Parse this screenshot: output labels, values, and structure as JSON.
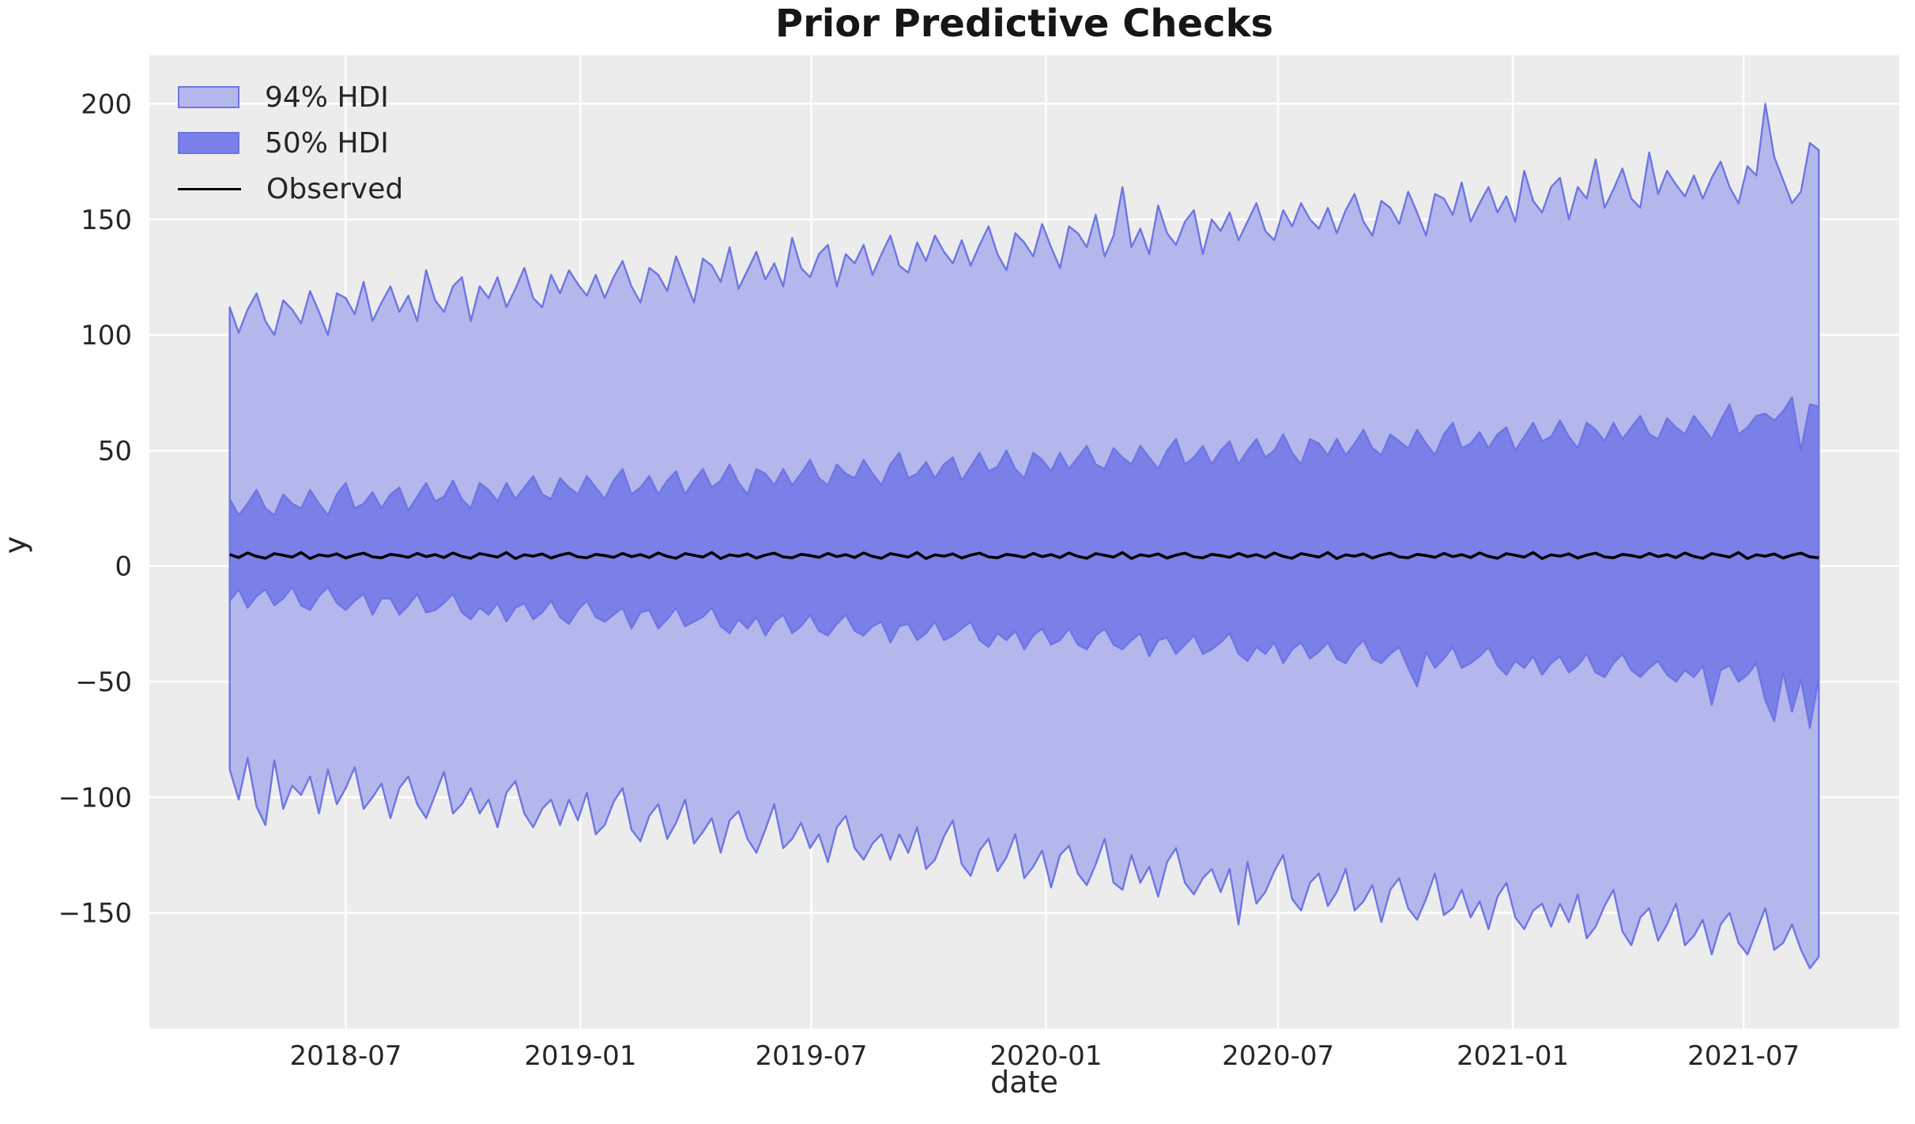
{
  "title": "Prior Predictive Checks",
  "chart_data": {
    "type": "area",
    "title": "Prior Predictive Checks",
    "xlabel": "date",
    "ylabel": "y",
    "grid": true,
    "legend_position": "upper left",
    "legend": [
      {
        "label": "94% HDI",
        "swatch": "light-band"
      },
      {
        "label": "50% HDI",
        "swatch": "dark-band"
      },
      {
        "label": "Observed",
        "swatch": "black-line"
      }
    ],
    "colors": {
      "hdi94_fill": "#b3b7ec",
      "hdi50_fill": "#7a80e8",
      "band_edge": "#6e75e3",
      "observed": "#000000",
      "plot_bg": "#ececec",
      "grid": "#ffffff",
      "text": "#262626",
      "figure_bg": "#ffffff"
    },
    "x_start": "2018-04-01",
    "x_step_days": 7,
    "n_points": 179,
    "xlim": [
      "2018-01-28",
      "2021-10-31"
    ],
    "ylim": [
      -200,
      221
    ],
    "x_ticks": [
      "2018-07-01",
      "2019-01-01",
      "2019-07-01",
      "2020-01-01",
      "2020-07-01",
      "2021-01-01",
      "2021-07-01"
    ],
    "x_tick_labels": [
      "2018-07",
      "2019-01",
      "2019-07",
      "2020-01",
      "2020-07",
      "2021-01",
      "2021-07"
    ],
    "y_ticks": [
      -150,
      -100,
      -50,
      0,
      50,
      100,
      150,
      200
    ],
    "y_tick_labels": [
      "−150",
      "−100",
      "−50",
      "0",
      "50",
      "100",
      "150",
      "200"
    ],
    "series": [
      {
        "name": "94% HDI upper",
        "values": [
          112,
          101,
          111,
          118,
          106,
          100,
          115,
          111,
          105,
          119,
          110,
          100,
          118,
          116,
          109,
          123,
          106,
          114,
          121,
          110,
          117,
          106,
          128,
          115,
          110,
          121,
          125,
          106,
          121,
          116,
          125,
          112,
          120,
          129,
          116,
          112,
          126,
          118,
          128,
          122,
          117,
          126,
          116,
          125,
          132,
          121,
          114,
          129,
          126,
          119,
          134,
          124,
          114,
          133,
          130,
          123,
          138,
          120,
          128,
          136,
          124,
          131,
          121,
          142,
          129,
          125,
          135,
          139,
          121,
          135,
          131,
          139,
          126,
          135,
          143,
          130,
          127,
          140,
          132,
          143,
          136,
          131,
          141,
          130,
          139,
          147,
          135,
          128,
          144,
          140,
          134,
          148,
          138,
          129,
          147,
          144,
          138,
          152,
          134,
          143,
          164,
          138,
          146,
          135,
          156,
          144,
          139,
          149,
          154,
          135,
          150,
          145,
          153,
          141,
          149,
          157,
          145,
          141,
          154,
          147,
          157,
          150,
          146,
          155,
          144,
          154,
          161,
          149,
          143,
          158,
          155,
          148,
          162,
          153,
          143,
          161,
          159,
          152,
          166,
          149,
          157,
          164,
          153,
          160,
          149,
          171,
          158,
          153,
          164,
          168,
          150,
          164,
          159,
          176,
          155,
          163,
          172,
          159,
          155,
          179,
          161,
          171,
          165,
          160,
          169,
          159,
          168,
          175,
          164,
          157,
          173,
          169,
          200,
          177,
          167,
          157,
          162,
          183,
          180
        ]
      },
      {
        "name": "94% HDI lower",
        "values": [
          -88,
          -101,
          -83,
          -104,
          -112,
          -84,
          -105,
          -95,
          -99,
          -91,
          -107,
          -88,
          -103,
          -96,
          -87,
          -105,
          -100,
          -94,
          -109,
          -96,
          -91,
          -103,
          -109,
          -99,
          -89,
          -107,
          -103,
          -96,
          -107,
          -101,
          -113,
          -98,
          -93,
          -107,
          -113,
          -105,
          -101,
          -112,
          -101,
          -110,
          -98,
          -116,
          -112,
          -102,
          -96,
          -114,
          -119,
          -108,
          -103,
          -118,
          -111,
          -101,
          -120,
          -115,
          -109,
          -124,
          -110,
          -106,
          -118,
          -124,
          -114,
          -103,
          -122,
          -118,
          -111,
          -122,
          -116,
          -128,
          -113,
          -108,
          -122,
          -127,
          -120,
          -116,
          -127,
          -116,
          -124,
          -113,
          -131,
          -127,
          -117,
          -110,
          -129,
          -134,
          -123,
          -118,
          -132,
          -126,
          -116,
          -135,
          -130,
          -123,
          -139,
          -125,
          -121,
          -133,
          -138,
          -129,
          -118,
          -137,
          -140,
          -125,
          -137,
          -130,
          -143,
          -128,
          -122,
          -137,
          -142,
          -135,
          -131,
          -141,
          -131,
          -155,
          -128,
          -146,
          -141,
          -132,
          -125,
          -144,
          -149,
          -137,
          -133,
          -147,
          -141,
          -131,
          -149,
          -145,
          -138,
          -154,
          -140,
          -135,
          -148,
          -153,
          -144,
          -133,
          -151,
          -148,
          -140,
          -152,
          -145,
          -157,
          -143,
          -137,
          -152,
          -157,
          -149,
          -146,
          -156,
          -146,
          -154,
          -142,
          -161,
          -156,
          -147,
          -140,
          -158,
          -164,
          -152,
          -148,
          -162,
          -155,
          -146,
          -164,
          -160,
          -153,
          -168,
          -155,
          -150,
          -163,
          -168,
          -158,
          -148,
          -166,
          -163,
          -155,
          -166,
          -174,
          -169
        ]
      },
      {
        "name": "50% HDI upper",
        "values": [
          29,
          22,
          27,
          33,
          25,
          22,
          31,
          27,
          25,
          33,
          27,
          22,
          31,
          36,
          25,
          27,
          32,
          25,
          31,
          34,
          24,
          30,
          36,
          28,
          30,
          37,
          29,
          25,
          36,
          33,
          28,
          36,
          29,
          34,
          39,
          31,
          29,
          38,
          34,
          31,
          39,
          34,
          29,
          37,
          42,
          31,
          34,
          39,
          31,
          37,
          41,
          31,
          37,
          42,
          34,
          37,
          44,
          36,
          31,
          42,
          40,
          35,
          42,
          35,
          40,
          46,
          38,
          35,
          44,
          40,
          38,
          46,
          40,
          35,
          44,
          49,
          38,
          40,
          45,
          38,
          44,
          47,
          37,
          43,
          49,
          41,
          43,
          50,
          42,
          38,
          49,
          46,
          41,
          49,
          42,
          47,
          52,
          44,
          42,
          51,
          47,
          44,
          52,
          47,
          42,
          50,
          55,
          44,
          47,
          52,
          44,
          50,
          54,
          44,
          50,
          55,
          47,
          50,
          57,
          49,
          44,
          55,
          53,
          48,
          55,
          48,
          53,
          59,
          51,
          48,
          57,
          54,
          51,
          59,
          53,
          48,
          57,
          62,
          51,
          53,
          58,
          51,
          57,
          60,
          50,
          56,
          62,
          54,
          56,
          63,
          56,
          51,
          62,
          59,
          54,
          62,
          55,
          60,
          65,
          57,
          55,
          64,
          60,
          57,
          65,
          60,
          55,
          63,
          70,
          57,
          60,
          65,
          66,
          63,
          67,
          73,
          50,
          70,
          69
        ]
      },
      {
        "name": "50% HDI lower",
        "values": [
          -15,
          -10,
          -18,
          -13,
          -10,
          -17,
          -14,
          -9,
          -17,
          -19,
          -13,
          -9,
          -16,
          -19,
          -15,
          -12,
          -21,
          -14,
          -14,
          -21,
          -17,
          -12,
          -20,
          -19,
          -16,
          -12,
          -20,
          -23,
          -18,
          -21,
          -16,
          -24,
          -18,
          -16,
          -23,
          -20,
          -15,
          -22,
          -25,
          -19,
          -15,
          -22,
          -24,
          -21,
          -18,
          -27,
          -20,
          -19,
          -27,
          -23,
          -18,
          -26,
          -24,
          -22,
          -18,
          -26,
          -29,
          -23,
          -27,
          -22,
          -30,
          -24,
          -21,
          -29,
          -26,
          -21,
          -28,
          -30,
          -25,
          -21,
          -28,
          -30,
          -26,
          -24,
          -33,
          -26,
          -25,
          -32,
          -29,
          -24,
          -32,
          -30,
          -27,
          -24,
          -32,
          -35,
          -29,
          -32,
          -28,
          -36,
          -30,
          -27,
          -34,
          -32,
          -27,
          -34,
          -36,
          -30,
          -27,
          -34,
          -36,
          -32,
          -29,
          -39,
          -32,
          -31,
          -38,
          -34,
          -30,
          -38,
          -36,
          -33,
          -29,
          -38,
          -41,
          -35,
          -38,
          -33,
          -42,
          -36,
          -33,
          -40,
          -37,
          -33,
          -40,
          -42,
          -36,
          -32,
          -40,
          -42,
          -38,
          -35,
          -44,
          -52,
          -37,
          -44,
          -40,
          -35,
          -44,
          -42,
          -39,
          -35,
          -43,
          -47,
          -41,
          -44,
          -39,
          -47,
          -42,
          -39,
          -46,
          -43,
          -38,
          -46,
          -48,
          -42,
          -38,
          -45,
          -48,
          -44,
          -41,
          -47,
          -50,
          -45,
          -48,
          -43,
          -60,
          -45,
          -43,
          -50,
          -47,
          -42,
          -58,
          -67,
          -46,
          -63,
          -49,
          -70,
          -48
        ]
      },
      {
        "name": "Observed",
        "values": [
          5,
          3.7,
          5.7,
          4.2,
          3.4,
          5.4,
          4.7,
          3.9,
          5.9,
          3.3,
          4.9,
          4.3,
          5.3,
          3.5,
          4.8,
          5.6,
          4,
          3.6,
          5.1,
          4.6,
          3.8,
          5.5,
          4.1,
          5,
          3.7,
          5.7,
          4.2,
          3.4,
          5.4,
          4.7,
          3.9,
          5.9,
          3.3,
          4.9,
          4.3,
          5.3,
          3.5,
          4.8,
          5.6,
          4,
          3.6,
          5.1,
          4.6,
          3.8,
          5.5,
          4.1,
          5,
          3.7,
          5.7,
          4.2,
          3.4,
          5.4,
          4.7,
          3.9,
          5.9,
          3.3,
          4.9,
          4.3,
          5.3,
          3.5,
          4.8,
          5.6,
          4,
          3.6,
          5.1,
          4.6,
          3.8,
          5.5,
          4.1,
          5,
          3.7,
          5.7,
          4.2,
          3.4,
          5.4,
          4.7,
          3.9,
          5.9,
          3.3,
          4.9,
          4.3,
          5.3,
          3.5,
          4.8,
          5.6,
          4,
          3.6,
          5.1,
          4.6,
          3.8,
          5.5,
          4.1,
          5,
          3.7,
          5.7,
          4.2,
          3.4,
          5.4,
          4.7,
          3.9,
          5.9,
          3.3,
          4.9,
          4.3,
          5.3,
          3.5,
          4.8,
          5.6,
          4,
          3.6,
          5.1,
          4.6,
          3.8,
          5.5,
          4.1,
          5,
          3.7,
          5.7,
          4.2,
          3.4,
          5.4,
          4.7,
          3.9,
          5.9,
          3.3,
          4.9,
          4.3,
          5.3,
          3.5,
          4.8,
          5.6,
          4,
          3.6,
          5.1,
          4.6,
          3.8,
          5.5,
          4.1,
          5,
          3.7,
          5.7,
          4.2,
          3.4,
          5.4,
          4.7,
          3.9,
          5.9,
          3.3,
          4.9,
          4.3,
          5.3,
          3.5,
          4.8,
          5.6,
          4,
          3.6,
          5.1,
          4.6,
          3.8,
          5.5,
          4.1,
          5,
          3.7,
          5.7,
          4.2,
          3.4,
          5.4,
          4.7,
          3.9,
          5.9,
          3.3,
          4.9,
          4.3,
          5.3,
          3.5,
          4.8,
          5.6,
          4,
          3.6
        ]
      }
    ]
  }
}
